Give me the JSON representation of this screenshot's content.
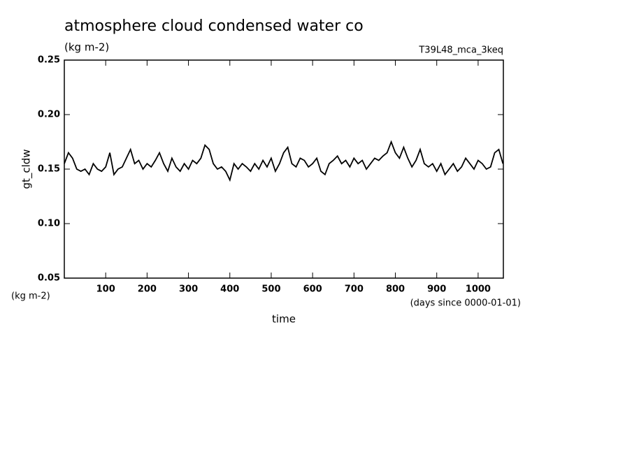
{
  "chart_data": {
    "type": "line",
    "title": "atmosphere cloud condensed water co",
    "subtitle": "(kg m-2)",
    "annotation": "T39L48_mca_3keq",
    "y_label": "gt_cldw",
    "y_unit": "(kg m-2)",
    "x_label": "time",
    "x_unit": "(days since 0000-01-01)",
    "xlim": [
      0,
      1061
    ],
    "xticks": [
      100,
      200,
      300,
      400,
      500,
      600,
      700,
      800,
      900,
      1000
    ],
    "ylim": [
      0.05,
      0.25
    ],
    "yticks": [
      0.05,
      {
        "value": 0.1,
        "label": "0.10"
      },
      0.15,
      {
        "value": 0.2,
        "label": "0.20"
      },
      0.25
    ],
    "x": [
      0,
      10,
      20,
      30,
      40,
      50,
      60,
      70,
      80,
      90,
      100,
      110,
      120,
      130,
      140,
      150,
      160,
      170,
      180,
      190,
      200,
      210,
      220,
      230,
      240,
      250,
      260,
      270,
      280,
      290,
      300,
      310,
      320,
      330,
      340,
      350,
      360,
      370,
      380,
      390,
      400,
      410,
      420,
      430,
      440,
      450,
      460,
      470,
      480,
      490,
      500,
      510,
      520,
      530,
      540,
      550,
      560,
      570,
      580,
      590,
      600,
      610,
      620,
      630,
      640,
      650,
      660,
      670,
      680,
      690,
      700,
      710,
      720,
      730,
      740,
      750,
      760,
      770,
      780,
      790,
      800,
      810,
      820,
      830,
      840,
      850,
      860,
      870,
      880,
      890,
      900,
      910,
      920,
      930,
      940,
      950,
      960,
      970,
      980,
      990,
      1000,
      1010,
      1020,
      1030,
      1040,
      1050,
      1060
    ],
    "series": [
      {
        "name": "gt_cldw",
        "color": "#000000",
        "values": [
          0.155,
          0.165,
          0.16,
          0.15,
          0.148,
          0.15,
          0.145,
          0.155,
          0.15,
          0.148,
          0.152,
          0.165,
          0.145,
          0.15,
          0.152,
          0.16,
          0.168,
          0.155,
          0.158,
          0.15,
          0.155,
          0.152,
          0.158,
          0.165,
          0.155,
          0.148,
          0.16,
          0.152,
          0.148,
          0.155,
          0.15,
          0.158,
          0.155,
          0.16,
          0.172,
          0.168,
          0.155,
          0.15,
          0.152,
          0.148,
          0.14,
          0.155,
          0.15,
          0.155,
          0.152,
          0.148,
          0.155,
          0.15,
          0.158,
          0.152,
          0.16,
          0.148,
          0.155,
          0.165,
          0.17,
          0.155,
          0.152,
          0.16,
          0.158,
          0.152,
          0.155,
          0.16,
          0.148,
          0.145,
          0.155,
          0.158,
          0.162,
          0.155,
          0.158,
          0.152,
          0.16,
          0.155,
          0.158,
          0.15,
          0.155,
          0.16,
          0.158,
          0.162,
          0.165,
          0.175,
          0.165,
          0.16,
          0.17,
          0.16,
          0.152,
          0.158,
          0.168,
          0.155,
          0.152,
          0.155,
          0.148,
          0.155,
          0.145,
          0.15,
          0.155,
          0.148,
          0.152,
          0.16,
          0.155,
          0.15,
          0.158,
          0.155,
          0.15,
          0.152,
          0.165,
          0.168,
          0.155
        ]
      }
    ]
  }
}
